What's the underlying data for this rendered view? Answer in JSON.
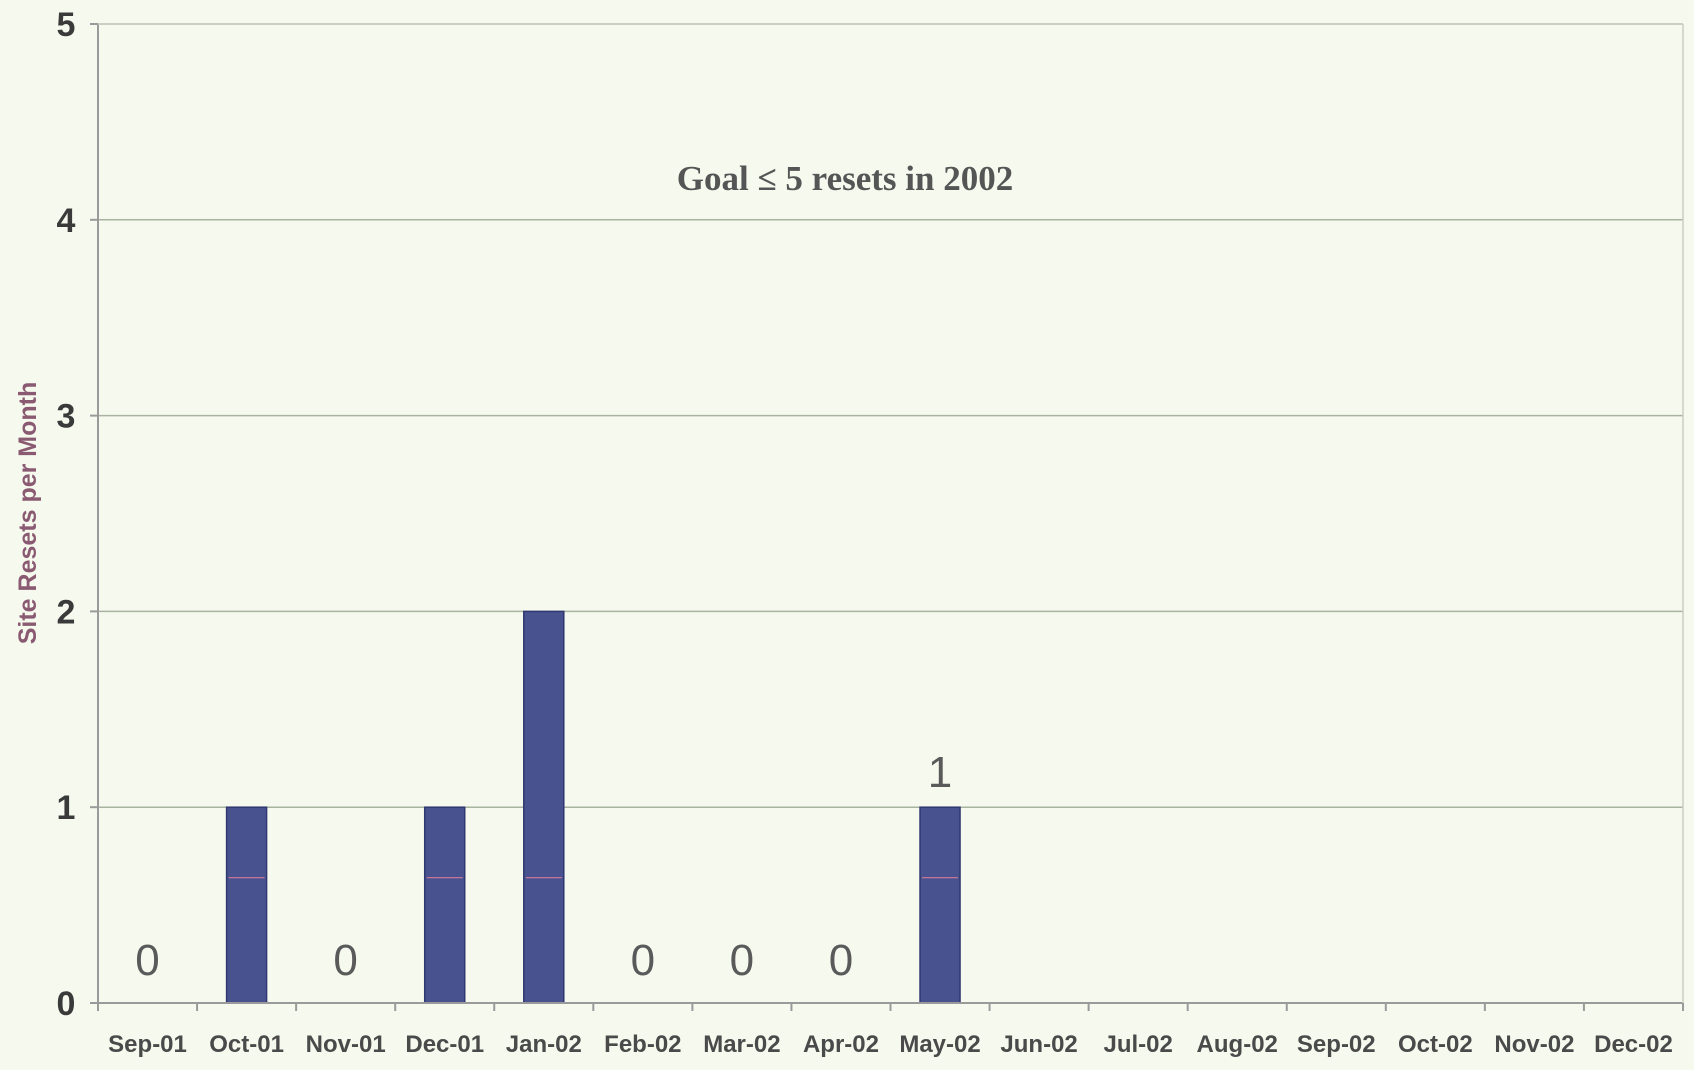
{
  "chart_data": {
    "type": "bar",
    "title": "",
    "xlabel": "",
    "ylabel": "Site Resets per Month",
    "annotation": "Goal ≤ 5 resets in 2002",
    "categories": [
      "Sep-01",
      "Oct-01",
      "Nov-01",
      "Dec-01",
      "Jan-02",
      "Feb-02",
      "Mar-02",
      "Apr-02",
      "May-02",
      "Jun-02",
      "Jul-02",
      "Aug-02",
      "Sep-02",
      "Oct-02",
      "Nov-02",
      "Dec-02"
    ],
    "values": [
      0,
      1,
      0,
      1,
      2,
      0,
      0,
      0,
      1,
      null,
      null,
      null,
      null,
      null,
      null,
      null
    ],
    "data_labels": [
      "0",
      "",
      "0",
      "",
      "",
      "0",
      "0",
      "0",
      "1",
      "",
      "",
      "",
      "",
      "",
      "",
      ""
    ],
    "yticks": [
      "0",
      "1",
      "2",
      "3",
      "4",
      "5"
    ],
    "ylim": [
      0,
      5
    ],
    "grid": true,
    "legend": "none",
    "colors": {
      "bar": "#47528f",
      "bar_edge": "#2f3870",
      "bar_inner_line": "#d77a9a",
      "gridline": "#a8b4a0",
      "axis": "#9a9a9a",
      "background": "#f6f9ee"
    }
  }
}
